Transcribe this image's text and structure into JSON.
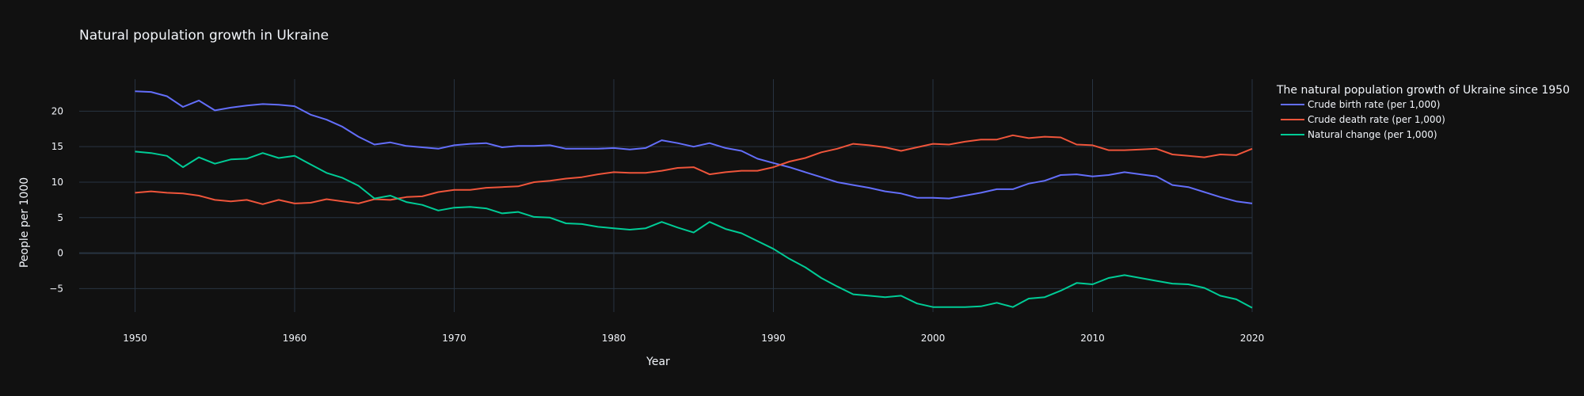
{
  "chart_data": {
    "type": "line",
    "title": "Natural population growth in Ukraine",
    "xlabel": "Year",
    "ylabel": "People per 1000",
    "xlim": [
      1946.5,
      2020
    ],
    "ylim": [
      -8.3,
      24.5
    ],
    "x_ticks": [
      1950,
      1960,
      1970,
      1980,
      1990,
      2000,
      2010,
      2020
    ],
    "y_ticks": [
      -5,
      0,
      5,
      10,
      15,
      20
    ],
    "y_tick_labels": [
      "−5",
      "0",
      "5",
      "10",
      "15",
      "20"
    ],
    "grid": true,
    "legend": {
      "title": "The natural population growth of Ukraine since 1950",
      "placement": "right"
    },
    "colors": {
      "background": "#111111",
      "grid": "#283442",
      "zeroline": "#283442",
      "text": "#f2f5fa"
    },
    "x": [
      1950,
      1951,
      1952,
      1953,
      1954,
      1955,
      1956,
      1957,
      1958,
      1959,
      1960,
      1961,
      1962,
      1963,
      1964,
      1965,
      1966,
      1967,
      1968,
      1969,
      1970,
      1971,
      1972,
      1973,
      1974,
      1975,
      1976,
      1977,
      1978,
      1979,
      1980,
      1981,
      1982,
      1983,
      1984,
      1985,
      1986,
      1987,
      1988,
      1989,
      1990,
      1991,
      1992,
      1993,
      1994,
      1995,
      1996,
      1997,
      1998,
      1999,
      2000,
      2001,
      2002,
      2003,
      2004,
      2005,
      2006,
      2007,
      2008,
      2009,
      2010,
      2011,
      2012,
      2013,
      2014,
      2015,
      2016,
      2017,
      2018,
      2019,
      2020
    ],
    "series": [
      {
        "name": "Crude birth rate (per 1,000)",
        "color": "#636efa",
        "values": [
          22.8,
          22.7,
          22.1,
          20.6,
          21.5,
          20.1,
          20.5,
          20.8,
          21.0,
          20.9,
          20.7,
          19.5,
          18.8,
          17.8,
          16.4,
          15.3,
          15.6,
          15.1,
          14.9,
          14.7,
          15.2,
          15.4,
          15.5,
          14.9,
          15.1,
          15.1,
          15.2,
          14.7,
          14.7,
          14.7,
          14.8,
          14.6,
          14.8,
          15.9,
          15.5,
          15.0,
          15.5,
          14.8,
          14.4,
          13.3,
          12.7,
          12.1,
          11.4,
          10.7,
          10.0,
          9.6,
          9.2,
          8.7,
          8.4,
          7.8,
          7.8,
          7.7,
          8.1,
          8.5,
          9.0,
          9.0,
          9.8,
          10.2,
          11.0,
          11.1,
          10.8,
          11.0,
          11.4,
          11.1,
          10.8,
          9.6,
          9.3,
          8.6,
          7.9,
          7.3,
          7.0
        ]
      },
      {
        "name": "Crude death rate (per 1,000)",
        "color": "#ef553b",
        "values": [
          8.5,
          8.7,
          8.5,
          8.4,
          8.1,
          7.5,
          7.3,
          7.5,
          6.9,
          7.5,
          7.0,
          7.1,
          7.6,
          7.3,
          7.0,
          7.6,
          7.5,
          7.9,
          8.0,
          8.6,
          8.9,
          8.9,
          9.2,
          9.3,
          9.4,
          10.0,
          10.2,
          10.5,
          10.7,
          11.1,
          11.4,
          11.3,
          11.3,
          11.6,
          12.0,
          12.1,
          11.1,
          11.4,
          11.6,
          11.6,
          12.1,
          12.9,
          13.4,
          14.2,
          14.7,
          15.4,
          15.2,
          14.9,
          14.4,
          14.9,
          15.4,
          15.3,
          15.7,
          16.0,
          16.0,
          16.6,
          16.2,
          16.4,
          16.3,
          15.3,
          15.2,
          14.5,
          14.5,
          14.6,
          14.7,
          13.9,
          13.7,
          13.5,
          13.9,
          13.8,
          14.7
        ]
      },
      {
        "name": "Natural change (per 1,000)",
        "color": "#00cc96",
        "values": [
          14.3,
          14.1,
          13.7,
          12.1,
          13.5,
          12.6,
          13.2,
          13.3,
          14.1,
          13.4,
          13.7,
          12.5,
          11.3,
          10.6,
          9.5,
          7.7,
          8.1,
          7.2,
          6.8,
          6.0,
          6.4,
          6.5,
          6.3,
          5.6,
          5.8,
          5.1,
          5.0,
          4.2,
          4.1,
          3.7,
          3.5,
          3.3,
          3.5,
          4.4,
          3.6,
          2.9,
          4.4,
          3.4,
          2.8,
          1.7,
          0.6,
          -0.8,
          -2.0,
          -3.5,
          -4.7,
          -5.8,
          -6.0,
          -6.2,
          -6.0,
          -7.1,
          -7.6,
          -7.6,
          -7.6,
          -7.5,
          -7.0,
          -7.6,
          -6.4,
          -6.2,
          -5.3,
          -4.2,
          -4.4,
          -3.5,
          -3.1,
          -3.5,
          -3.9,
          -4.3,
          -4.4,
          -4.9,
          -6.0,
          -6.5,
          -7.7
        ]
      }
    ]
  }
}
